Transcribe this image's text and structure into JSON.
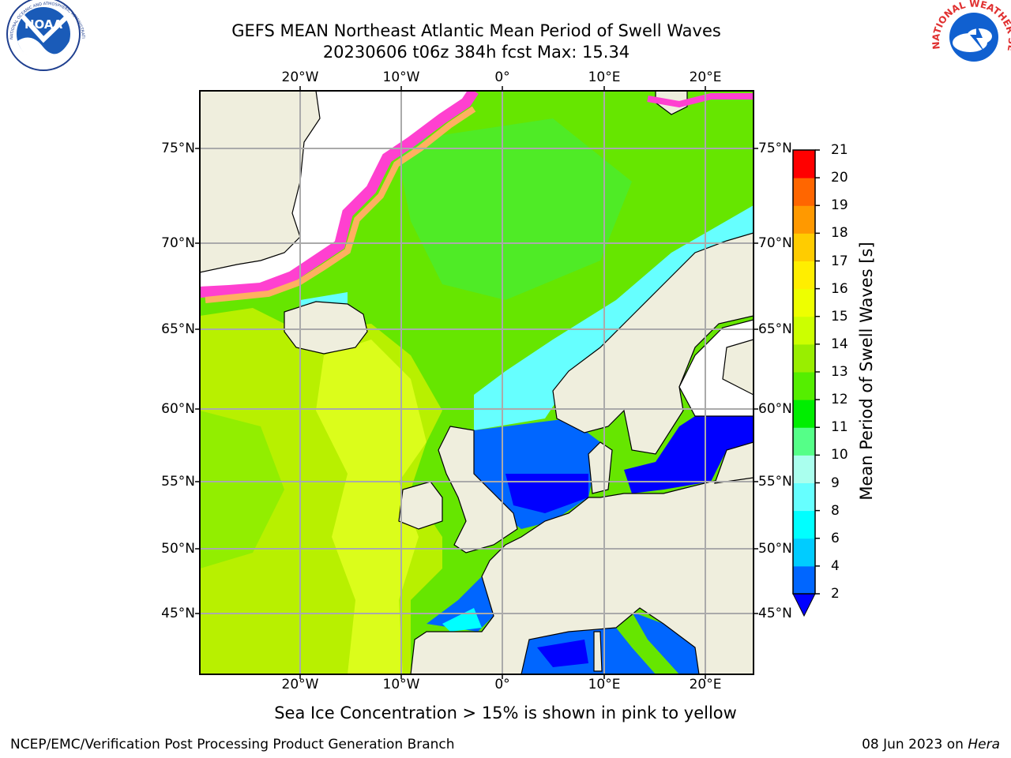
{
  "title": {
    "line1": "GEFS MEAN Northeast Atlantic Mean Period of Swell Waves",
    "line2": "20230606 t06z 384h fcst   Max: 15.34"
  },
  "logos": {
    "left": {
      "icon": "noaa-logo",
      "text": "NOAA",
      "ring_text": "NATIONAL OCEANIC AND ATMOSPHERIC ADMINISTRATION · U.S. DEPARTMENT OF COMMERCE"
    },
    "right": {
      "icon": "nws-logo",
      "ring_text": "NATIONAL WEATHER SERVICE"
    }
  },
  "map": {
    "lon_ticks": [
      "20°W",
      "10°W",
      "0°",
      "10°E",
      "20°E"
    ],
    "lat_ticks": [
      "75°N",
      "70°N",
      "65°N",
      "60°N",
      "55°N",
      "50°N",
      "45°N"
    ],
    "colors": {
      "land": "#efeedd",
      "ocean_main": "#66e600",
      "grid": "#aaaaaa"
    }
  },
  "colorbar": {
    "label": "Mean Period of Swell Waves [s]",
    "ticks": [
      "2",
      "4",
      "6",
      "8",
      "9",
      "10",
      "11",
      "12",
      "13",
      "14",
      "15",
      "16",
      "17",
      "18",
      "19",
      "20",
      "21"
    ],
    "colors": [
      "#0066ff",
      "#00ccff",
      "#00ffff",
      "#66ffff",
      "#aaffee",
      "#55ff88",
      "#00ee00",
      "#55ee00",
      "#99ee00",
      "#ccff00",
      "#eeff00",
      "#ffee00",
      "#ffcc00",
      "#ff9900",
      "#ff6600",
      "#ff3300",
      "#ff0000"
    ],
    "under_color": "#0000ff"
  },
  "caption": "Sea Ice Concentration > 15% is shown in pink to yellow",
  "footer": {
    "left": "NCEP/EMC/Verification Post Processing Product Generation Branch",
    "right_prefix": "08 Jun 2023 on ",
    "right_host": "Hera"
  }
}
